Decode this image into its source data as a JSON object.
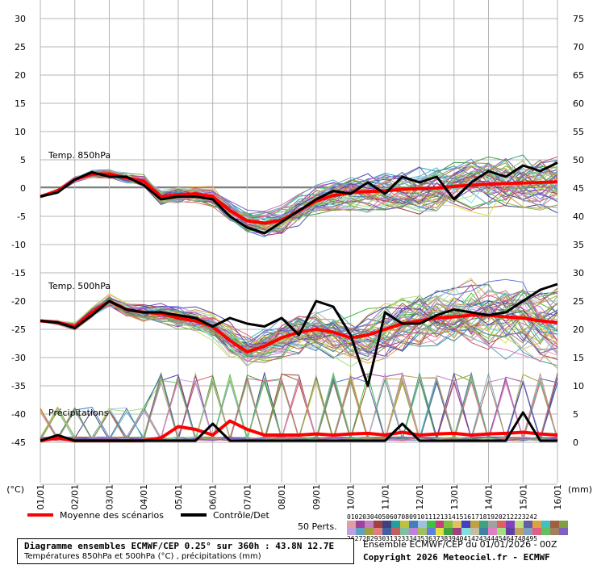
{
  "chart_data": {
    "type": "line",
    "left_axis": {
      "ticks": [
        "30",
        "25",
        "20",
        "15",
        "10",
        "5",
        "0",
        "-5",
        "-10",
        "-15",
        "-20",
        "-25",
        "-30",
        "-35",
        "-40",
        "-45"
      ],
      "unit": "(°C)"
    },
    "right_axis": {
      "ticks": [
        "75",
        "70",
        "65",
        "60",
        "55",
        "50",
        "45",
        "40",
        "35",
        "30",
        "25",
        "20",
        "15",
        "10",
        "5",
        "0"
      ],
      "unit": "(mm)"
    },
    "x_ticks": [
      "01/01",
      "02/01",
      "03/01",
      "04/01",
      "05/01",
      "06/01",
      "07/01",
      "08/01",
      "09/01",
      "10/01",
      "11/01",
      "12/01",
      "13/01",
      "14/01",
      "15/01",
      "16/01"
    ],
    "panels": [
      {
        "label": "Temp. 850hPa",
        "x": [
          0,
          0.5,
          1,
          1.5,
          2,
          2.5,
          3,
          3.5,
          4,
          4.5,
          5,
          5.5,
          6,
          6.5,
          7,
          7.5,
          8,
          8.5,
          9,
          9.5,
          10,
          10.5,
          11,
          11.5,
          12,
          12.5,
          13,
          13.5,
          14,
          14.5,
          15
        ],
        "series": [
          {
            "name": "Moyenne des scénarios",
            "values": [
              -1.5,
              -0.5,
              1.5,
              2.5,
              2.5,
              1.8,
              1.2,
              -1.5,
              -1.2,
              -1,
              -1.5,
              -4,
              -5.8,
              -6.2,
              -5.7,
              -4,
              -2.3,
              -1.3,
              -0.8,
              -0.6,
              -0.5,
              -0.2,
              -0.1,
              0,
              0.3,
              0.5,
              0.7,
              0.8,
              0.9,
              1,
              1.1
            ]
          },
          {
            "name": "Contrôle/Det",
            "values": [
              -1.5,
              -0.8,
              1.5,
              2.8,
              2,
              2,
              0.5,
              -2,
              -1.5,
              -1.5,
              -2,
              -5,
              -7,
              -8,
              -6,
              -4,
              -2,
              -0.5,
              -1,
              1,
              -1,
              2,
              1,
              2,
              -2,
              1,
              3,
              2,
              4,
              3,
              4.5
            ]
          }
        ]
      },
      {
        "label": "Temp. 500hPa",
        "x": [
          0,
          0.5,
          1,
          1.5,
          2,
          2.5,
          3,
          3.5,
          4,
          4.5,
          5,
          5.5,
          6,
          6.5,
          7,
          7.5,
          8,
          8.5,
          9,
          9.5,
          10,
          10.5,
          11,
          11.5,
          12,
          12.5,
          13,
          13.5,
          14,
          14.5,
          15
        ],
        "series": [
          {
            "name": "Moyenne des scénarios",
            "values": [
              -23.5,
              -23.8,
              -24.5,
              -22,
              -20,
              -21.5,
              -22,
              -22.2,
              -23,
              -23.5,
              -24.5,
              -27,
              -29,
              -28,
              -26.5,
              -25.5,
              -25,
              -25.5,
              -26.5,
              -26,
              -25,
              -24,
              -23.5,
              -23,
              -22.8,
              -22.5,
              -22.5,
              -22.8,
              -23,
              -23.5,
              -23.8
            ]
          },
          {
            "name": "Contrôle/Det",
            "values": [
              -23.5,
              -23.8,
              -24.8,
              -22.5,
              -20,
              -21.5,
              -22,
              -22,
              -22.5,
              -23,
              -24.5,
              -23,
              -24,
              -24.5,
              -23,
              -26,
              -20,
              -21,
              -26,
              -35,
              -22,
              -24,
              -24,
              -22.5,
              -21.5,
              -22,
              -22.5,
              -22,
              -20,
              -18,
              -17
            ]
          }
        ]
      },
      {
        "label": "Précipitations",
        "x": [
          0,
          0.5,
          1,
          1.5,
          2,
          2.5,
          3,
          3.5,
          4,
          4.5,
          5,
          5.5,
          6,
          6.5,
          7,
          7.5,
          8,
          8.5,
          9,
          9.5,
          10,
          10.5,
          11,
          11.5,
          12,
          12.5,
          13,
          13.5,
          14,
          14.5,
          15
        ],
        "series": [
          {
            "name": "Moyenne des scénarios",
            "values": [
              0,
              0.5,
              0,
              0,
              0,
              0,
              0,
              0.5,
              2.5,
              2,
              1,
              3.5,
              2,
              1,
              1,
              1,
              1.2,
              1,
              1.2,
              1.3,
              1,
              1.5,
              1,
              1.2,
              1.3,
              1,
              1.2,
              1.3,
              1.5,
              1.2,
              1
            ]
          },
          {
            "name": "Contrôle/Det",
            "values": [
              0,
              1,
              0,
              0,
              0,
              0,
              0,
              0,
              0,
              0,
              3,
              0,
              0,
              0,
              0,
              0,
              0,
              0,
              0,
              0,
              0,
              3,
              0,
              0,
              0,
              0,
              0,
              0,
              5,
              0,
              0
            ]
          }
        ]
      }
    ],
    "legend": [
      {
        "label": "Moyenne des scénarios",
        "color": "#ff0000"
      },
      {
        "label": "Contrôle/Det",
        "color": "#000000"
      }
    ],
    "perturbations_label": "50 Perts.",
    "perturbation_numbers_top": "0102030405060708091011121314151617181920212223242",
    "perturbation_numbers_bottom": "2627282930313233343536373839404142434445464748495",
    "perturbation_colors": [
      "#e0a0a0",
      "#a040a0",
      "#c080c0",
      "#a04040",
      "#404080",
      "#20a0a0",
      "#c0c040",
      "#4080c0",
      "#a0c0e0",
      "#40c040",
      "#c04080",
      "#80c040",
      "#e0c060",
      "#4040c0",
      "#c0a040",
      "#40a080",
      "#a0a0a0",
      "#e06060",
      "#8040c0",
      "#c0e080",
      "#6060a0",
      "#e0a040",
      "#40c0c0",
      "#a06040",
      "#80a040"
    ],
    "perturbation_colors_b": [
      "#c0a0e0",
      "#60a0c0",
      "#a0a040",
      "#e08080",
      "#4060a0",
      "#c06060",
      "#80c0a0",
      "#c080e0",
      "#a0c060",
      "#6080e0",
      "#e0e040",
      "#40a040",
      "#a04080",
      "#80e0e0",
      "#c0c0a0",
      "#4080a0",
      "#e080c0",
      "#a0e080",
      "#6040a0",
      "#c0a060",
      "#80a0c0",
      "#e06080",
      "#60c060",
      "#a08060",
      "#8060c0"
    ],
    "colors": {
      "mean": "#ff0000",
      "control": "#000000",
      "grid": "#b4b4b4",
      "zero": "#808080"
    }
  },
  "footer": {
    "title": "Diagramme ensembles ECMWF/CEP 0.25° sur 360h : 43.8N 12.7E",
    "subtitle": "Températures 850hPa et 500hPa (°C) , précipitations (mm)",
    "run": "Ensemble ECMWF/CEP du 01/01/2026 - 00Z",
    "copyright": "Copyright 2026 Meteociel.fr - ECMWF"
  }
}
